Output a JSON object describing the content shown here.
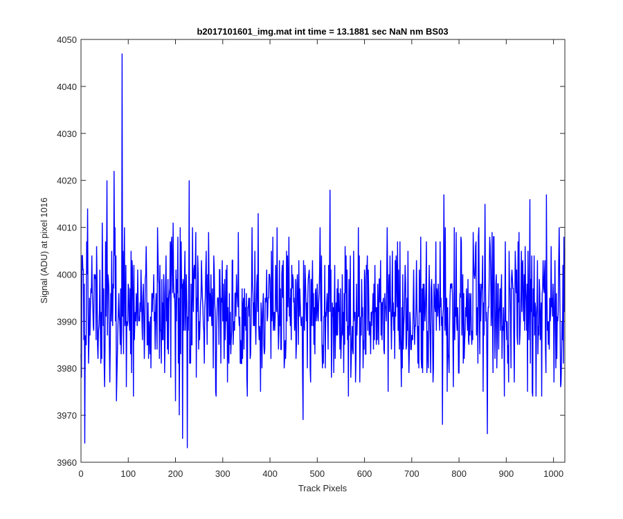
{
  "chart_data": {
    "type": "line",
    "title": "b2017101601_img.mat int time = 13.1881 sec  NaN nm BS03",
    "xlabel": "Track Pixels",
    "ylabel": "Signal (ADU) at pixel 1016",
    "xlim": [
      0,
      1024
    ],
    "ylim": [
      3960,
      4050
    ],
    "xticks": [
      0,
      100,
      200,
      300,
      400,
      500,
      600,
      700,
      800,
      900,
      1000
    ],
    "yticks": [
      3960,
      3970,
      3980,
      3990,
      4000,
      4010,
      4020,
      4030,
      4040,
      4050
    ],
    "grid": false,
    "line_color": "#0000ff",
    "noise": {
      "mean": 3993,
      "seed": 1016
    },
    "series": [
      {
        "name": "",
        "x_start": 0,
        "x_end": 1023,
        "keypoints": [
          [
            0,
            3983
          ],
          [
            5,
            4001
          ],
          [
            8,
            3964
          ],
          [
            12,
            4007
          ],
          [
            14,
            4014
          ],
          [
            20,
            3993
          ],
          [
            27,
            3988
          ],
          [
            35,
            3985
          ],
          [
            40,
            4001
          ],
          [
            45,
            4011
          ],
          [
            50,
            3976
          ],
          [
            55,
            4020
          ],
          [
            60,
            3985
          ],
          [
            65,
            4005
          ],
          [
            70,
            4022
          ],
          [
            75,
            3973
          ],
          [
            80,
            3996
          ],
          [
            85,
            3983
          ],
          [
            87,
            4047
          ],
          [
            90,
            3983
          ],
          [
            92,
            4010
          ],
          [
            96,
            3976
          ],
          [
            100,
            3998
          ],
          [
            110,
            3994
          ],
          [
            120,
            4001
          ],
          [
            130,
            3986
          ],
          [
            140,
            3985
          ],
          [
            150,
            3996
          ],
          [
            160,
            3990
          ],
          [
            170,
            3981
          ],
          [
            180,
            4004
          ],
          [
            190,
            3978
          ],
          [
            195,
            4011
          ],
          [
            200,
            3973
          ],
          [
            205,
            4008
          ],
          [
            208,
            3970
          ],
          [
            210,
            4010
          ],
          [
            215,
            3965
          ],
          [
            220,
            4005
          ],
          [
            225,
            3963
          ],
          [
            229,
            4020
          ],
          [
            235,
            3985
          ],
          [
            240,
            4002
          ],
          [
            250,
            3990
          ],
          [
            260,
            3988
          ],
          [
            270,
            4009
          ],
          [
            280,
            3980
          ],
          [
            290,
            3995
          ],
          [
            300,
            3990
          ],
          [
            310,
            3977
          ],
          [
            320,
            4003
          ],
          [
            330,
            3996
          ],
          [
            340,
            3981
          ],
          [
            350,
            3996
          ],
          [
            360,
            3990
          ],
          [
            370,
            3985
          ],
          [
            375,
            4013
          ],
          [
            380,
            3975
          ],
          [
            390,
            3995
          ],
          [
            400,
            3999
          ],
          [
            410,
            3988
          ],
          [
            420,
            4003
          ],
          [
            430,
            3980
          ],
          [
            440,
            4008
          ],
          [
            450,
            3994
          ],
          [
            460,
            3985
          ],
          [
            470,
            3969
          ],
          [
            480,
            3995
          ],
          [
            490,
            4003
          ],
          [
            500,
            3998
          ],
          [
            510,
            3985
          ],
          [
            520,
            3994
          ],
          [
            527,
            4018
          ],
          [
            530,
            3978
          ],
          [
            540,
            3994
          ],
          [
            550,
            3982
          ],
          [
            560,
            3996
          ],
          [
            570,
            4004
          ],
          [
            580,
            3992
          ],
          [
            590,
            3977
          ],
          [
            600,
            4001
          ],
          [
            610,
            3987
          ],
          [
            620,
            3998
          ],
          [
            630,
            3985
          ],
          [
            640,
            3995
          ],
          [
            650,
            3975
          ],
          [
            660,
            3991
          ],
          [
            670,
            4007
          ],
          [
            680,
            3980
          ],
          [
            690,
            3995
          ],
          [
            700,
            3987
          ],
          [
            710,
            4003
          ],
          [
            720,
            3982
          ],
          [
            730,
            3998
          ],
          [
            740,
            3979
          ],
          [
            750,
            3992
          ],
          [
            760,
            4007
          ],
          [
            765,
            3968
          ],
          [
            768,
            4017
          ],
          [
            775,
            3975
          ],
          [
            785,
            3998
          ],
          [
            790,
            4010
          ],
          [
            800,
            3979
          ],
          [
            810,
            3996
          ],
          [
            820,
            3986
          ],
          [
            830,
            4009
          ],
          [
            840,
            3981
          ],
          [
            850,
            4004
          ],
          [
            855,
            4015
          ],
          [
            860,
            3966
          ],
          [
            865,
            4008
          ],
          [
            875,
            3993
          ],
          [
            880,
            3980
          ],
          [
            890,
            4000
          ],
          [
            900,
            3990
          ],
          [
            910,
            3980
          ],
          [
            920,
            4001
          ],
          [
            930,
            3991
          ],
          [
            940,
            4006
          ],
          [
            945,
            3975
          ],
          [
            950,
            4016
          ],
          [
            960,
            3987
          ],
          [
            970,
            3999
          ],
          [
            975,
            3974
          ],
          [
            985,
            4017
          ],
          [
            990,
            3990
          ],
          [
            995,
            4006
          ],
          [
            1000,
            3993
          ],
          [
            1005,
            3980
          ],
          [
            1010,
            3992
          ],
          [
            1015,
            3976
          ],
          [
            1020,
            4002
          ],
          [
            1023,
            3992
          ]
        ]
      }
    ]
  }
}
